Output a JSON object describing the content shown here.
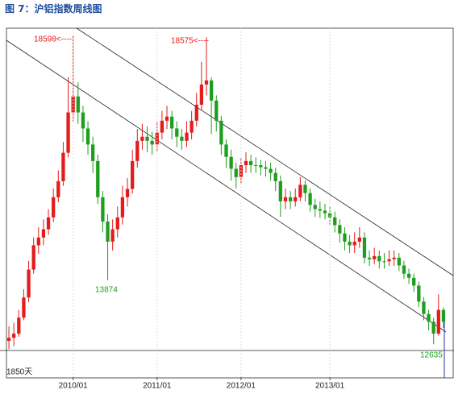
{
  "header": {
    "title": "图 7：沪铝指数周线图"
  },
  "chart_data": {
    "type": "candlestick",
    "categories": [
      null,
      null,
      null,
      null,
      null,
      null,
      null,
      null,
      null,
      null,
      null,
      null,
      null,
      "2010/01",
      null,
      null,
      null,
      null,
      null,
      null,
      null,
      null,
      null,
      null,
      null,
      null,
      null,
      null,
      null,
      null,
      "2011/01",
      null,
      null,
      null,
      null,
      null,
      null,
      null,
      null,
      null,
      null,
      null,
      null,
      null,
      null,
      null,
      null,
      "2012/01",
      null,
      null,
      null,
      null,
      null,
      null,
      null,
      null,
      null,
      null,
      null,
      null,
      null,
      null,
      null,
      null,
      null,
      "2013/01",
      null,
      null,
      null,
      null,
      null,
      null,
      null,
      null,
      null,
      null,
      null,
      null,
      null,
      null,
      null,
      null,
      null,
      null,
      null,
      null,
      null,
      null,
      null
    ],
    "open": [
      12700,
      12760,
      12840,
      13150,
      13540,
      14080,
      14550,
      14700,
      14860,
      15090,
      15480,
      15790,
      16340,
      17120,
      17430,
      17120,
      16810,
      16500,
      16180,
      15480,
      15010,
      14620,
      14860,
      15090,
      15480,
      15640,
      16180,
      16570,
      16650,
      16570,
      16500,
      16730,
      16960,
      17040,
      16810,
      16650,
      16570,
      16730,
      16960,
      17270,
      17660,
      17740,
      17350,
      16960,
      16500,
      16260,
      16030,
      15870,
      16100,
      16180,
      16100,
      16100,
      16060,
      16030,
      15950,
      15790,
      15400,
      15480,
      15400,
      15480,
      15720,
      15560,
      15330,
      15250,
      15220,
      15170,
      15090,
      14940,
      14780,
      14620,
      14550,
      14620,
      14700,
      14310,
      14280,
      14340,
      14240,
      14240,
      14280,
      14310,
      14160,
      14000,
      13920,
      13770,
      13460,
      13220,
      13070,
      12840,
      13300
    ],
    "high": [
      12980,
      13050,
      13300,
      13700,
      14250,
      14700,
      14900,
      15050,
      15250,
      15650,
      16000,
      16550,
      17800,
      18598,
      17700,
      17250,
      16950,
      16650,
      16300,
      15600,
      15150,
      15050,
      15300,
      15700,
      15850,
      16400,
      16800,
      16900,
      16850,
      16750,
      16950,
      17150,
      17250,
      17150,
      16950,
      16800,
      16950,
      17150,
      17500,
      18100,
      18575,
      17800,
      17450,
      17050,
      16600,
      16400,
      16150,
      16250,
      16350,
      16300,
      16250,
      16200,
      16180,
      16150,
      16050,
      15900,
      15650,
      15600,
      15650,
      15870,
      15800,
      15650,
      15450,
      15400,
      15350,
      15300,
      15200,
      15050,
      14900,
      14750,
      14800,
      14900,
      14800,
      14450,
      14500,
      14450,
      14400,
      14450,
      14450,
      14400,
      14250,
      14100,
      14000,
      13850,
      13550,
      13300,
      13150,
      13600,
      13350
    ],
    "low": [
      12540,
      12600,
      12780,
      13100,
      13450,
      14000,
      14380,
      14550,
      14750,
      15000,
      15380,
      15700,
      16250,
      16950,
      16900,
      16550,
      16300,
      15950,
      15350,
      14800,
      13874,
      14450,
      14700,
      14950,
      15300,
      15550,
      16050,
      16400,
      16350,
      16300,
      16350,
      16600,
      16800,
      16600,
      16450,
      16400,
      16450,
      16600,
      16850,
      17150,
      17450,
      16700,
      16750,
      16300,
      16050,
      15800,
      15650,
      15750,
      15950,
      15950,
      15950,
      15900,
      15880,
      15800,
      15600,
      15100,
      15250,
      15250,
      15300,
      15400,
      15400,
      15200,
      15100,
      15080,
      15050,
      14950,
      14800,
      14600,
      14450,
      14400,
      14400,
      14500,
      14200,
      14150,
      14180,
      14100,
      14100,
      14150,
      14150,
      14050,
      13900,
      13800,
      13650,
      13350,
      13100,
      12900,
      12635,
      12800,
      12950
    ],
    "close": [
      12760,
      12840,
      13150,
      13540,
      14080,
      14550,
      14700,
      14860,
      15090,
      15480,
      15790,
      16340,
      17120,
      17430,
      17120,
      16810,
      16500,
      16180,
      15480,
      15010,
      14620,
      14860,
      15090,
      15480,
      15640,
      16180,
      16570,
      16650,
      16570,
      16500,
      16730,
      16960,
      17040,
      16810,
      16650,
      16570,
      16730,
      16960,
      17270,
      17660,
      17740,
      17350,
      16960,
      16500,
      16260,
      16030,
      15870,
      16100,
      16180,
      16100,
      16100,
      16060,
      16030,
      15950,
      15790,
      15400,
      15480,
      15400,
      15480,
      15720,
      15560,
      15330,
      15250,
      15220,
      15170,
      15090,
      14940,
      14780,
      14620,
      14550,
      14620,
      14700,
      14310,
      14280,
      14340,
      14240,
      14240,
      14280,
      14310,
      14160,
      14000,
      13920,
      13770,
      13460,
      13220,
      13070,
      12840,
      13300,
      13070
    ],
    "up_color": "#e31c1c",
    "down_color": "#1e9e1e",
    "ylim": [
      12000,
      18750
    ],
    "annotations": [
      "18598<----",
      "18575<----",
      "13874",
      "12635",
      "1850天"
    ]
  }
}
